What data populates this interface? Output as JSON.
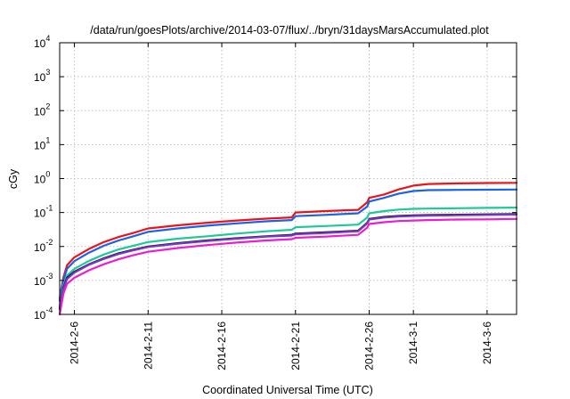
{
  "chart_data": {
    "type": "line",
    "title": "/data/run/goesPlots/archive/2014-03-07/flux/../bryn/31daysMarsAccumulated.plot",
    "xlabel": "Coordinated Universal Time (UTC)",
    "ylabel": "cGy",
    "yscale": "log",
    "ylim": [
      0.0001,
      10000
    ],
    "xlim": [
      "2014-02-05",
      "2014-03-08"
    ],
    "grid": true,
    "y_ticks": [
      {
        "base": "10",
        "exp": "-4",
        "value": 0.0001
      },
      {
        "base": "10",
        "exp": "-3",
        "value": 0.001
      },
      {
        "base": "10",
        "exp": "-2",
        "value": 0.01
      },
      {
        "base": "10",
        "exp": "-1",
        "value": 0.1
      },
      {
        "base": "10",
        "exp": "0",
        "value": 1
      },
      {
        "base": "10",
        "exp": "1",
        "value": 10
      },
      {
        "base": "10",
        "exp": "2",
        "value": 100
      },
      {
        "base": "10",
        "exp": "3",
        "value": 1000
      },
      {
        "base": "10",
        "exp": "4",
        "value": 10000
      }
    ],
    "x_ticks": [
      {
        "label": "2014-2-6",
        "date": "2014-02-06"
      },
      {
        "label": "2014-2-11",
        "date": "2014-02-11"
      },
      {
        "label": "2014-2-16",
        "date": "2014-02-16"
      },
      {
        "label": "2014-2-21",
        "date": "2014-02-21"
      },
      {
        "label": "2014-2-26",
        "date": "2014-02-26"
      },
      {
        "label": "2014-3-1",
        "date": "2014-03-01"
      },
      {
        "label": "2014-3-6",
        "date": "2014-03-06"
      }
    ],
    "x": [
      "2014-02-05",
      "2014-02-05 06:00",
      "2014-02-05 12:00",
      "2014-02-06",
      "2014-02-07",
      "2014-02-08",
      "2014-02-09",
      "2014-02-10",
      "2014-02-11",
      "2014-02-13",
      "2014-02-15",
      "2014-02-17",
      "2014-02-19",
      "2014-02-20 18:00",
      "2014-02-21",
      "2014-02-23",
      "2014-02-25 06:00",
      "2014-02-25 21:00",
      "2014-02-26",
      "2014-02-27",
      "2014-02-28",
      "2014-03-01",
      "2014-03-02",
      "2014-03-04",
      "2014-03-06",
      "2014-03-08"
    ],
    "series": [
      {
        "color": "#e8141a",
        "values": [
          0.0003,
          0.0012,
          0.0028,
          0.0048,
          0.0085,
          0.0135,
          0.019,
          0.025,
          0.034,
          0.042,
          0.05,
          0.058,
          0.066,
          0.072,
          0.1,
          0.11,
          0.12,
          0.2,
          0.27,
          0.34,
          0.48,
          0.62,
          0.69,
          0.72,
          0.74,
          0.75
        ]
      },
      {
        "color": "#1b63e6",
        "values": [
          0.00025,
          0.001,
          0.0022,
          0.0037,
          0.0066,
          0.0105,
          0.015,
          0.02,
          0.027,
          0.034,
          0.041,
          0.048,
          0.055,
          0.06,
          0.078,
          0.085,
          0.095,
          0.15,
          0.21,
          0.27,
          0.36,
          0.43,
          0.455,
          0.465,
          0.47,
          0.475
        ]
      },
      {
        "color": "#1fc89a",
        "values": [
          0.00018,
          0.0007,
          0.0014,
          0.0022,
          0.0038,
          0.0058,
          0.0082,
          0.0105,
          0.0135,
          0.017,
          0.02,
          0.024,
          0.028,
          0.031,
          0.037,
          0.04,
          0.044,
          0.072,
          0.095,
          0.11,
          0.122,
          0.128,
          0.131,
          0.134,
          0.137,
          0.14
        ]
      },
      {
        "color": "#101010",
        "values": [
          0.00015,
          0.0006,
          0.0012,
          0.0018,
          0.003,
          0.0045,
          0.0063,
          0.008,
          0.01,
          0.0125,
          0.015,
          0.0175,
          0.02,
          0.022,
          0.024,
          0.026,
          0.029,
          0.05,
          0.065,
          0.074,
          0.079,
          0.082,
          0.084,
          0.086,
          0.088,
          0.09
        ]
      },
      {
        "color": "#7a36c8",
        "values": [
          0.00014,
          0.00055,
          0.0011,
          0.0017,
          0.0029,
          0.0043,
          0.006,
          0.0077,
          0.0097,
          0.012,
          0.0145,
          0.017,
          0.0195,
          0.021,
          0.023,
          0.025,
          0.028,
          0.048,
          0.062,
          0.071,
          0.076,
          0.079,
          0.081,
          0.083,
          0.085,
          0.087
        ]
      },
      {
        "color": "#e81ed0",
        "values": [
          0.0001,
          0.0004,
          0.0008,
          0.0012,
          0.002,
          0.003,
          0.0042,
          0.0055,
          0.007,
          0.009,
          0.011,
          0.013,
          0.015,
          0.0165,
          0.018,
          0.0195,
          0.022,
          0.036,
          0.046,
          0.052,
          0.056,
          0.058,
          0.06,
          0.062,
          0.063,
          0.065
        ]
      }
    ]
  }
}
